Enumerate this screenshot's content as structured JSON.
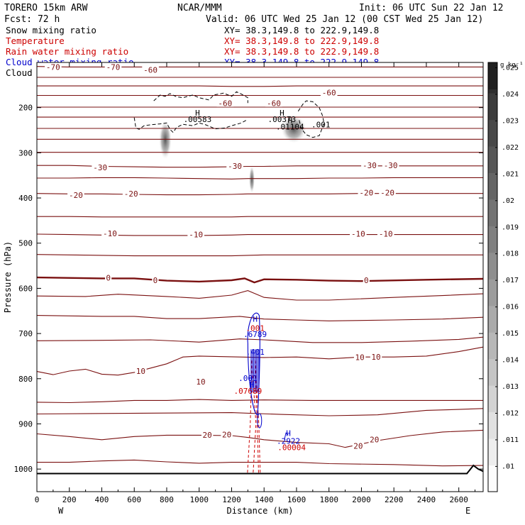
{
  "header": {
    "model": "TORERO  15km ARW",
    "center": "NCAR/MMM",
    "init": "Init: 06 UTC Sun 22 Jan 12",
    "fcst": "Fcst:  72 h",
    "valid": "Valid: 06 UTC Wed 25 Jan 12 (00 CST Wed 25 Jan 12)"
  },
  "legend": [
    {
      "label": "Snow mixing ratio",
      "xy": "XY=  38.3,149.8 to 222.9,149.8",
      "color": "#000000"
    },
    {
      "label": "Temperature",
      "xy": "XY=  38.3,149.8 to 222.9,149.8",
      "color": "#cc0000"
    },
    {
      "label": "Rain water mixing ratio",
      "xy": "XY=  38.3,149.8 to 222.9,149.8",
      "color": "#cc0000"
    },
    {
      "label": "Cloud water mixing ratio",
      "xy": "XY=  38.3,149.8 to 222.9,149.8",
      "color": "#0000cc"
    },
    {
      "label": "Cloud ice mixing ratio",
      "xy": "XY=  38.3,149.8 to 222.9,149.8",
      "color": "#000000"
    }
  ],
  "chart_data": {
    "type": "contour",
    "xlabel": "Distance (km)",
    "ylabel": "Pressure (hPa)",
    "xlim": [
      0,
      2750
    ],
    "ylim": [
      1050,
      100
    ],
    "x_ticks": [
      0,
      200,
      400,
      600,
      800,
      1000,
      1200,
      1400,
      1600,
      1800,
      2000,
      2200,
      2400,
      2600
    ],
    "y_ticks": [
      200,
      300,
      400,
      500,
      600,
      700,
      800,
      900,
      1000
    ],
    "x_ends": {
      "left": "W",
      "right": "E"
    },
    "temperature_isotherms_C": [
      -70,
      -60,
      -50,
      -40,
      -30,
      -20,
      -10,
      0,
      10,
      20
    ],
    "temperature_labels": [
      {
        "text": "-70",
        "x": 100,
        "p": 112
      },
      {
        "text": "-70",
        "x": 470,
        "p": 112
      },
      {
        "text": "-60",
        "x": 700,
        "p": 118
      },
      {
        "text": "-60",
        "x": 1800,
        "p": 168
      },
      {
        "text": "-60",
        "x": 1160,
        "p": 192
      },
      {
        "text": "-60",
        "x": 1460,
        "p": 192
      },
      {
        "text": "-30",
        "x": 390,
        "p": 334
      },
      {
        "text": "-30",
        "x": 1220,
        "p": 331
      },
      {
        "text": "-30",
        "x": 2050,
        "p": 329
      },
      {
        "text": "-30",
        "x": 2180,
        "p": 329
      },
      {
        "text": "-20",
        "x": 240,
        "p": 395
      },
      {
        "text": "-20",
        "x": 580,
        "p": 392
      },
      {
        "text": "-20",
        "x": 2030,
        "p": 390
      },
      {
        "text": "-20",
        "x": 2160,
        "p": 390
      },
      {
        "text": "-10",
        "x": 450,
        "p": 480
      },
      {
        "text": "-10",
        "x": 980,
        "p": 482
      },
      {
        "text": "-10",
        "x": 1980,
        "p": 481
      },
      {
        "text": "-10",
        "x": 2150,
        "p": 481
      },
      {
        "text": "0",
        "x": 440,
        "p": 578
      },
      {
        "text": "0",
        "x": 730,
        "p": 584
      },
      {
        "text": "0",
        "x": 2030,
        "p": 584
      },
      {
        "text": "10",
        "x": 1990,
        "p": 754
      },
      {
        "text": "10",
        "x": 2090,
        "p": 753
      },
      {
        "text": "10",
        "x": 640,
        "p": 785
      },
      {
        "text": "10",
        "x": 1010,
        "p": 808
      },
      {
        "text": "20",
        "x": 1050,
        "p": 926
      },
      {
        "text": "20",
        "x": 1170,
        "p": 925
      },
      {
        "text": "20",
        "x": 1980,
        "p": 950
      },
      {
        "text": "20",
        "x": 2080,
        "p": 936
      }
    ],
    "extrema_labels": [
      {
        "text": "H",
        "x": 990,
        "p": 218,
        "color": "#000000"
      },
      {
        "text": ".00583",
        "x": 990,
        "p": 232,
        "color": "#000000"
      },
      {
        "text": "H",
        "x": 1510,
        "p": 218,
        "color": "#000000"
      },
      {
        "text": ".00373",
        "x": 1510,
        "p": 232,
        "color": "#000000"
      },
      {
        "text": "H",
        "x": 1560,
        "p": 234,
        "color": "#000000"
      },
      {
        "text": ".01104",
        "x": 1560,
        "p": 248,
        "color": "#000000"
      },
      {
        "text": ".001",
        "x": 1750,
        "p": 244,
        "color": "#000000"
      },
      {
        "text": "H",
        "x": 1345,
        "p": 674,
        "color": "#0000cc"
      },
      {
        "text": ".001",
        "x": 1345,
        "p": 694,
        "color": "#cc0000"
      },
      {
        "text": ".6789",
        "x": 1345,
        "p": 708,
        "color": "#0000cc"
      },
      {
        "text": ".401",
        "x": 1345,
        "p": 747,
        "color": "#0000cc"
      },
      {
        "text": ".001",
        "x": 1300,
        "p": 805,
        "color": "#0000cc"
      },
      {
        "text": "H",
        "x": 1325,
        "p": 819,
        "color": "#0000cc"
      },
      {
        "text": ".07689",
        "x": 1300,
        "p": 833,
        "color": "#cc0000"
      },
      {
        "text": "H",
        "x": 1550,
        "p": 927,
        "color": "#0000cc"
      },
      {
        "text": ".2922",
        "x": 1550,
        "p": 944,
        "color": "#0000cc"
      },
      {
        "text": ".00004",
        "x": 1570,
        "p": 958,
        "color": "#cc0000"
      }
    ],
    "colorbar": {
      "units": "g kg⁻¹",
      "ticks": [
        ".01",
        ".011",
        ".012",
        ".013",
        ".014",
        ".015",
        ".016",
        ".017",
        ".018",
        ".019",
        ".02",
        ".021",
        ".022",
        ".023",
        ".024",
        ".025"
      ]
    }
  }
}
